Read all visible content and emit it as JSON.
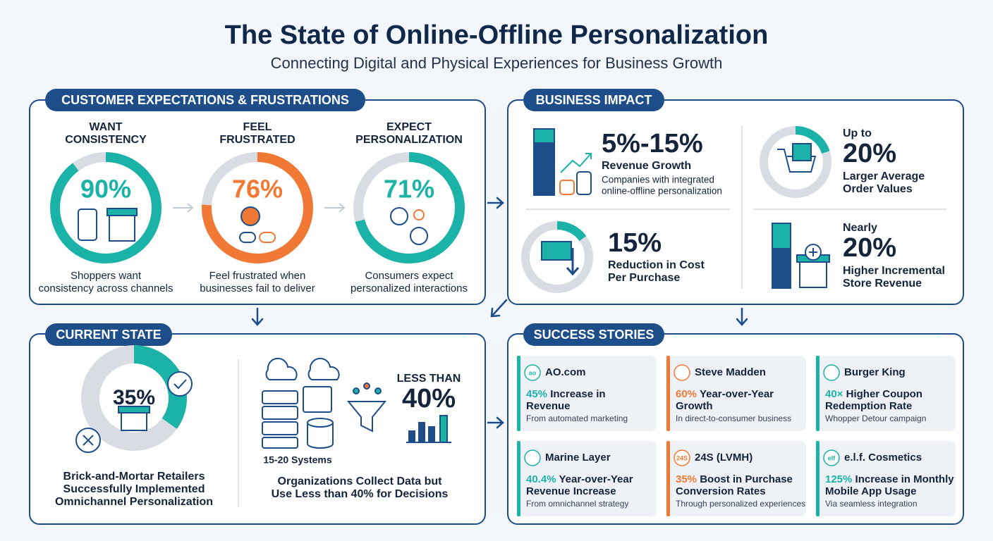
{
  "header": {
    "title": "The State of Online-Offline Personalization",
    "subtitle": "Connecting Digital and Physical Experiences for Business Growth"
  },
  "expectations": {
    "heading": "CUSTOMER EXPECTATIONS & FRUSTRATIONS",
    "items": [
      {
        "title_lines": [
          "WANT",
          "CONSISTENCY"
        ],
        "value": 90,
        "label": "90%",
        "color": "#1bb3a8",
        "caption_lines": [
          "Shoppers want",
          "consistency across channels"
        ]
      },
      {
        "title_lines": [
          "FEEL",
          "FRUSTRATED"
        ],
        "value": 76,
        "label": "76%",
        "color": "#f07a35",
        "caption_lines": [
          "Feel frustrated when",
          "businesses fail to deliver"
        ]
      },
      {
        "title_lines": [
          "EXPECT",
          "PERSONALIZATION"
        ],
        "value": 71,
        "label": "71%",
        "color": "#1bb3a8",
        "caption_lines": [
          "Consumers expect",
          "personalized interactions"
        ]
      }
    ]
  },
  "impact": {
    "heading": "BUSINESS IMPACT",
    "items": [
      {
        "stat": "5%-15%",
        "title": "Revenue Growth",
        "detail_lines": [
          "Companies with integrated",
          "online-offline personalization"
        ]
      },
      {
        "prefix": "Up to",
        "stat": "20%",
        "ring": 20,
        "title_lines": [
          "Larger Average",
          "Order Values"
        ]
      },
      {
        "stat": "15%",
        "ring": 15,
        "title_lines": [
          "Reduction in Cost",
          "Per Purchase"
        ]
      },
      {
        "prefix": "Nearly",
        "stat": "20%",
        "title_lines": [
          "Higher Incremental",
          "Store Revenue"
        ]
      }
    ]
  },
  "current_state": {
    "heading": "CURRENT STATE",
    "value": 35,
    "label": "35%",
    "caption_lines": [
      "Brick-and-Mortar Retailers",
      "Successfully Implemented",
      "Omnichannel Personalization"
    ],
    "systems": "15-20 Systems",
    "prefix": "LESS THAN",
    "stat": "40%",
    "data_caption_lines": [
      "Organizations Collect Data but",
      "Use Less than 40% for Decisions"
    ]
  },
  "success": {
    "heading": "SUCCESS STORIES",
    "cards": [
      {
        "company": "AO.com",
        "logo_text": "ao",
        "metric": "45%",
        "lines": [
          "Increase in",
          "Revenue"
        ],
        "note": "From automated marketing",
        "color": "#1bb3a8"
      },
      {
        "company": "Steve Madden",
        "metric": "60%",
        "lines": [
          "Year-over-Year",
          "Growth"
        ],
        "note": "In direct-to-consumer business",
        "color": "#f07a35"
      },
      {
        "company": "Burger King",
        "metric": "40×",
        "lines": [
          "Higher Coupon",
          "Redemption Rate"
        ],
        "note": "Whopper Detour campaign",
        "color": "#1bb3a8"
      },
      {
        "company": "Marine Layer",
        "metric": "40.4%",
        "lines": [
          "Year-over-Year",
          "Revenue Increase"
        ],
        "note": "From omnichannel strategy",
        "color": "#1bb3a8"
      },
      {
        "company": "24S (LVMH)",
        "logo_text": "24S",
        "metric": "35%",
        "lines": [
          "Boost in Purchase",
          "Conversion Rates"
        ],
        "note": "Through personalized experiences",
        "color": "#f07a35"
      },
      {
        "company": "e.l.f. Cosmetics",
        "logo_text": "elf",
        "metric": "125%",
        "lines": [
          "Increase in Monthly",
          "Mobile App Usage"
        ],
        "note": "Via seamless integration",
        "color": "#1bb3a8"
      }
    ]
  }
}
